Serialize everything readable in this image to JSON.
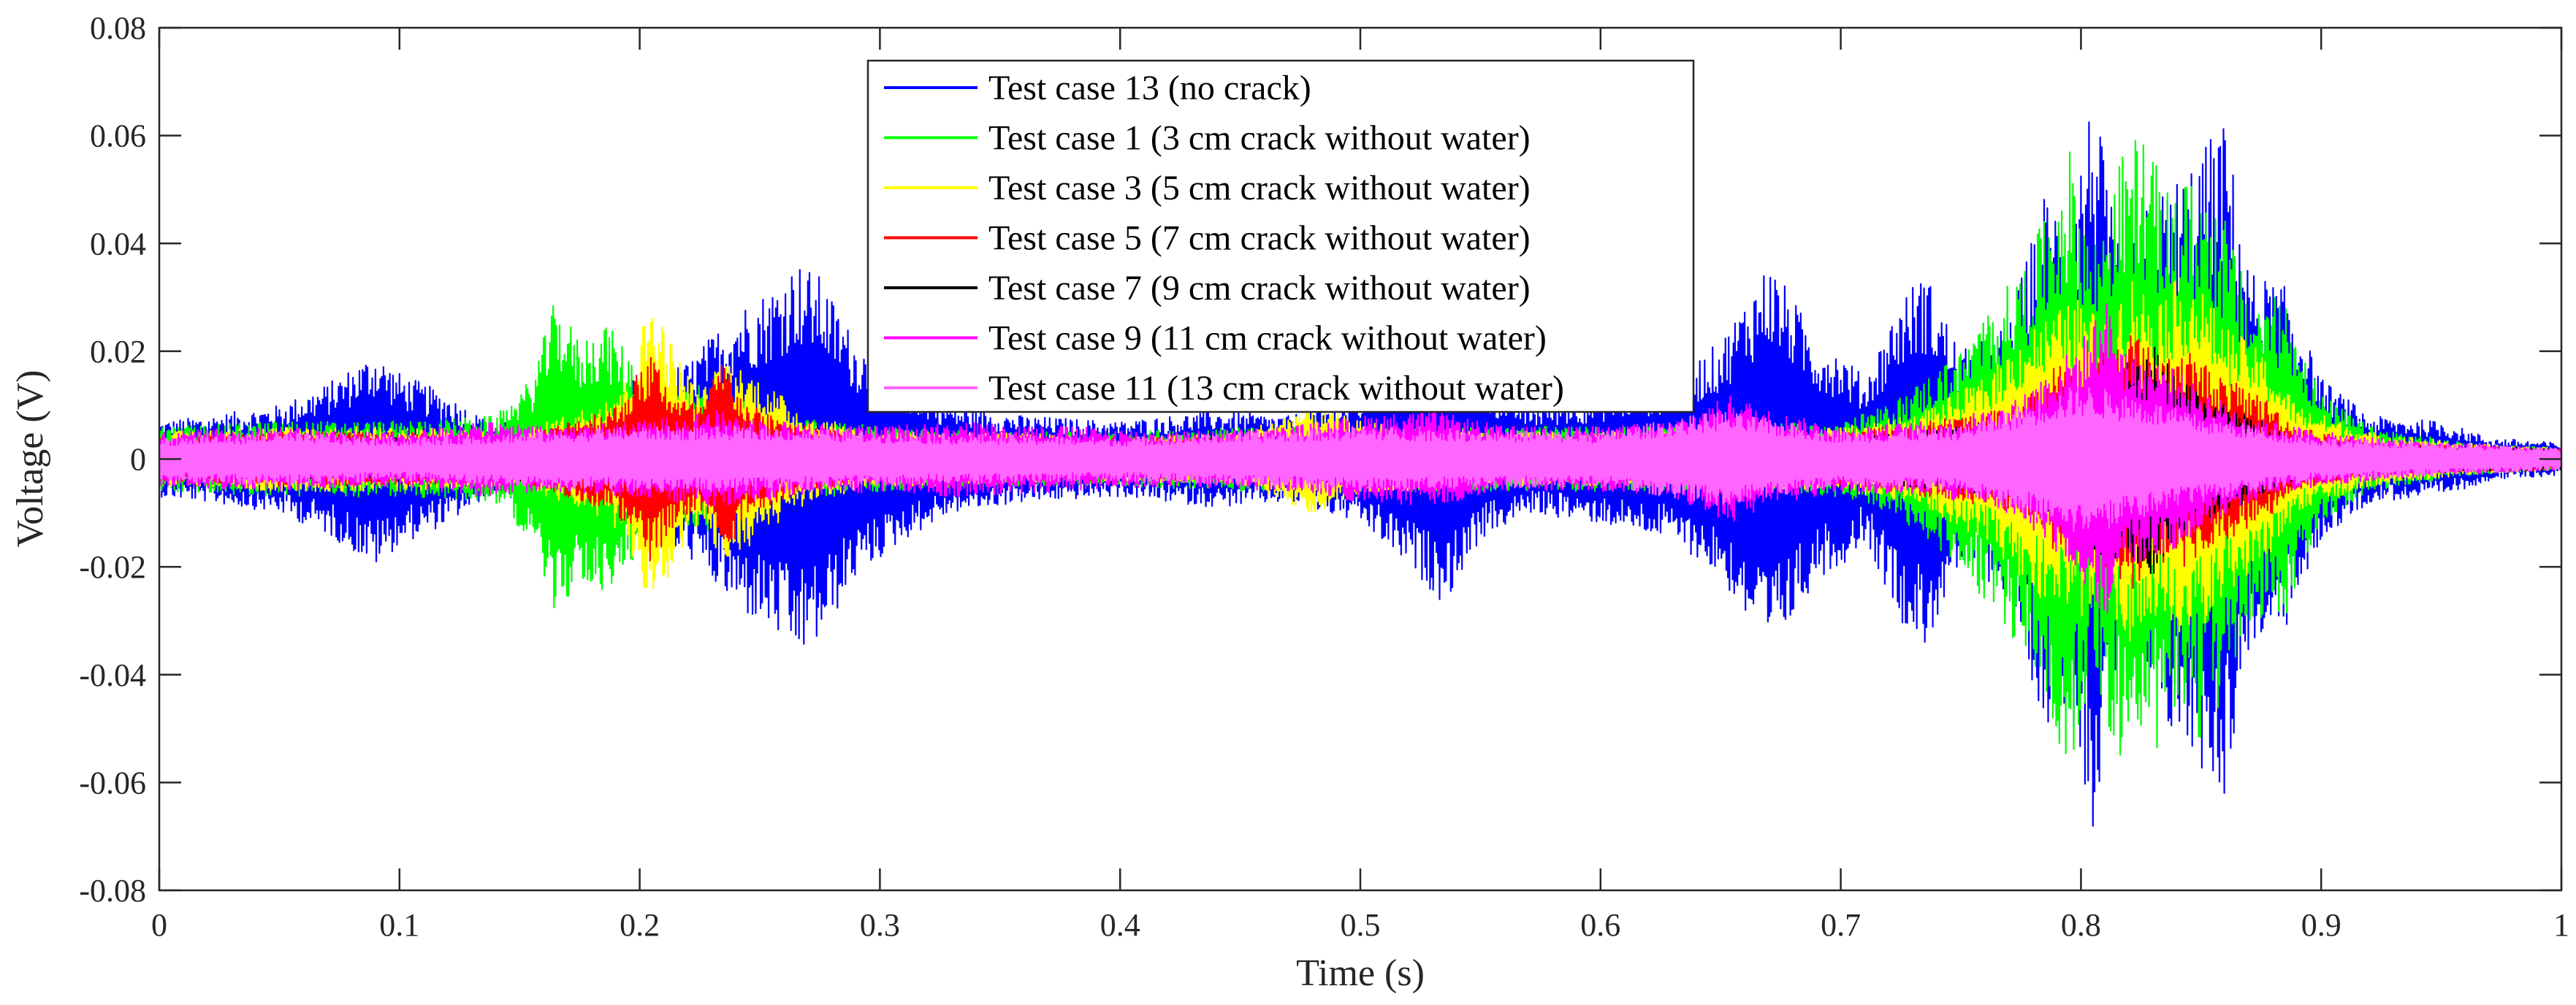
{
  "chart_data": {
    "type": "line",
    "title": "",
    "xlabel": "Time (s)",
    "ylabel": "Voltage (V)",
    "xlim": [
      0,
      1
    ],
    "ylim": [
      -0.08,
      0.08
    ],
    "grid": false,
    "legend_position": "top-center",
    "x_ticks": [
      0,
      0.1,
      0.2,
      0.3,
      0.4,
      0.5,
      0.6,
      0.7,
      0.8,
      0.9,
      1
    ],
    "x_tick_labels": [
      "0",
      "0.1",
      "0.2",
      "0.3",
      "0.4",
      "0.5",
      "0.6",
      "0.7",
      "0.8",
      "0.9",
      "1"
    ],
    "y_ticks": [
      0.08,
      0.06,
      0.04,
      0.02,
      0,
      -0.02,
      -0.04,
      -0.06,
      -0.08
    ],
    "y_tick_labels": [
      "0.08",
      "0.06",
      "0.04",
      "0.02",
      "0",
      "-0.02",
      "-0.04",
      "-0.06",
      "-0.08"
    ],
    "series": [
      {
        "name": "Test case 13 (no crack)",
        "color": "#0000ff",
        "envelope": [
          [
            0,
            0.007
          ],
          [
            0.02,
            0.008
          ],
          [
            0.05,
            0.01
          ],
          [
            0.07,
            0.014
          ],
          [
            0.09,
            0.02
          ],
          [
            0.1,
            0.016
          ],
          [
            0.12,
            0.012
          ],
          [
            0.14,
            0.006
          ],
          [
            0.16,
            0.01
          ],
          [
            0.18,
            0.012
          ],
          [
            0.2,
            0.015
          ],
          [
            0.22,
            0.018
          ],
          [
            0.24,
            0.028
          ],
          [
            0.255,
            0.032
          ],
          [
            0.265,
            0.037
          ],
          [
            0.275,
            0.034
          ],
          [
            0.29,
            0.022
          ],
          [
            0.31,
            0.015
          ],
          [
            0.33,
            0.01
          ],
          [
            0.36,
            0.008
          ],
          [
            0.4,
            0.007
          ],
          [
            0.44,
            0.009
          ],
          [
            0.47,
            0.008
          ],
          [
            0.5,
            0.012
          ],
          [
            0.52,
            0.02
          ],
          [
            0.535,
            0.027
          ],
          [
            0.55,
            0.015
          ],
          [
            0.57,
            0.01
          ],
          [
            0.6,
            0.012
          ],
          [
            0.63,
            0.015
          ],
          [
            0.65,
            0.022
          ],
          [
            0.67,
            0.037
          ],
          [
            0.68,
            0.03
          ],
          [
            0.69,
            0.022
          ],
          [
            0.7,
            0.02
          ],
          [
            0.71,
            0.015
          ],
          [
            0.725,
            0.03
          ],
          [
            0.735,
            0.035
          ],
          [
            0.75,
            0.02
          ],
          [
            0.77,
            0.025
          ],
          [
            0.785,
            0.05
          ],
          [
            0.795,
            0.045
          ],
          [
            0.805,
            0.069
          ],
          [
            0.815,
            0.04
          ],
          [
            0.83,
            0.048
          ],
          [
            0.845,
            0.055
          ],
          [
            0.86,
            0.063
          ],
          [
            0.87,
            0.035
          ],
          [
            0.885,
            0.032
          ],
          [
            0.9,
            0.015
          ],
          [
            0.92,
            0.008
          ],
          [
            0.95,
            0.007
          ],
          [
            0.97,
            0.004
          ],
          [
            1,
            0.003
          ]
        ]
      },
      {
        "name": "Test case 1 (3 cm crack without water)",
        "color": "#00ff00",
        "envelope": [
          [
            0,
            0.006
          ],
          [
            0.05,
            0.007
          ],
          [
            0.1,
            0.007
          ],
          [
            0.14,
            0.008
          ],
          [
            0.155,
            0.015
          ],
          [
            0.165,
            0.03
          ],
          [
            0.175,
            0.022
          ],
          [
            0.185,
            0.026
          ],
          [
            0.195,
            0.02
          ],
          [
            0.21,
            0.01
          ],
          [
            0.225,
            0.014
          ],
          [
            0.24,
            0.012
          ],
          [
            0.26,
            0.008
          ],
          [
            0.3,
            0.006
          ],
          [
            0.35,
            0.005
          ],
          [
            0.4,
            0.005
          ],
          [
            0.45,
            0.006
          ],
          [
            0.5,
            0.006
          ],
          [
            0.55,
            0.006
          ],
          [
            0.6,
            0.006
          ],
          [
            0.65,
            0.006
          ],
          [
            0.7,
            0.007
          ],
          [
            0.72,
            0.01
          ],
          [
            0.75,
            0.02
          ],
          [
            0.765,
            0.03
          ],
          [
            0.775,
            0.035
          ],
          [
            0.785,
            0.045
          ],
          [
            0.795,
            0.058
          ],
          [
            0.805,
            0.04
          ],
          [
            0.815,
            0.055
          ],
          [
            0.825,
            0.062
          ],
          [
            0.835,
            0.05
          ],
          [
            0.85,
            0.052
          ],
          [
            0.86,
            0.045
          ],
          [
            0.87,
            0.03
          ],
          [
            0.885,
            0.03
          ],
          [
            0.9,
            0.012
          ],
          [
            0.92,
            0.006
          ],
          [
            0.96,
            0.003
          ],
          [
            1,
            0.002
          ]
        ]
      },
      {
        "name": "Test case 3 (5 cm crack without water)",
        "color": "#ffff00",
        "envelope": [
          [
            0,
            0.005
          ],
          [
            0.05,
            0.006
          ],
          [
            0.1,
            0.006
          ],
          [
            0.15,
            0.005
          ],
          [
            0.18,
            0.01
          ],
          [
            0.195,
            0.015
          ],
          [
            0.205,
            0.031
          ],
          [
            0.215,
            0.02
          ],
          [
            0.225,
            0.012
          ],
          [
            0.235,
            0.019
          ],
          [
            0.25,
            0.015
          ],
          [
            0.27,
            0.008
          ],
          [
            0.3,
            0.005
          ],
          [
            0.35,
            0.005
          ],
          [
            0.4,
            0.004
          ],
          [
            0.45,
            0.005
          ],
          [
            0.48,
            0.01
          ],
          [
            0.5,
            0.007
          ],
          [
            0.55,
            0.005
          ],
          [
            0.6,
            0.005
          ],
          [
            0.65,
            0.005
          ],
          [
            0.7,
            0.006
          ],
          [
            0.73,
            0.008
          ],
          [
            0.76,
            0.015
          ],
          [
            0.78,
            0.025
          ],
          [
            0.8,
            0.03
          ],
          [
            0.81,
            0.025
          ],
          [
            0.82,
            0.035
          ],
          [
            0.83,
            0.03
          ],
          [
            0.845,
            0.035
          ],
          [
            0.86,
            0.025
          ],
          [
            0.875,
            0.02
          ],
          [
            0.89,
            0.01
          ],
          [
            0.92,
            0.005
          ],
          [
            0.96,
            0.003
          ],
          [
            1,
            0.002
          ]
        ]
      },
      {
        "name": "Test case 5 (7 cm crack without water)",
        "color": "#ff0000",
        "envelope": [
          [
            0,
            0.004
          ],
          [
            0.05,
            0.005
          ],
          [
            0.1,
            0.005
          ],
          [
            0.15,
            0.004
          ],
          [
            0.19,
            0.01
          ],
          [
            0.205,
            0.02
          ],
          [
            0.215,
            0.012
          ],
          [
            0.225,
            0.01
          ],
          [
            0.235,
            0.019
          ],
          [
            0.245,
            0.01
          ],
          [
            0.27,
            0.006
          ],
          [
            0.3,
            0.004
          ],
          [
            0.4,
            0.004
          ],
          [
            0.5,
            0.004
          ],
          [
            0.6,
            0.004
          ],
          [
            0.7,
            0.005
          ],
          [
            0.75,
            0.008
          ],
          [
            0.775,
            0.01
          ],
          [
            0.79,
            0.018
          ],
          [
            0.8,
            0.015
          ],
          [
            0.81,
            0.022
          ],
          [
            0.82,
            0.025
          ],
          [
            0.83,
            0.02
          ],
          [
            0.845,
            0.02
          ],
          [
            0.86,
            0.015
          ],
          [
            0.875,
            0.012
          ],
          [
            0.89,
            0.006
          ],
          [
            0.92,
            0.003
          ],
          [
            1,
            0.002
          ]
        ]
      },
      {
        "name": "Test case 7 (9 cm crack without water)",
        "color": "#000000",
        "envelope": [
          [
            0,
            0.003
          ],
          [
            0.1,
            0.004
          ],
          [
            0.2,
            0.004
          ],
          [
            0.3,
            0.003
          ],
          [
            0.4,
            0.003
          ],
          [
            0.5,
            0.003
          ],
          [
            0.6,
            0.003
          ],
          [
            0.7,
            0.004
          ],
          [
            0.75,
            0.006
          ],
          [
            0.78,
            0.008
          ],
          [
            0.795,
            0.012
          ],
          [
            0.81,
            0.02
          ],
          [
            0.82,
            0.018
          ],
          [
            0.83,
            0.022
          ],
          [
            0.84,
            0.015
          ],
          [
            0.86,
            0.01
          ],
          [
            0.88,
            0.006
          ],
          [
            0.9,
            0.003
          ],
          [
            1,
            0.002
          ]
        ]
      },
      {
        "name": "Test case 9 (11 cm crack without water)",
        "color": "#ff00ff",
        "envelope": [
          [
            0,
            0.005
          ],
          [
            0.04,
            0.006
          ],
          [
            0.1,
            0.005
          ],
          [
            0.13,
            0.007
          ],
          [
            0.16,
            0.006
          ],
          [
            0.2,
            0.007
          ],
          [
            0.23,
            0.009
          ],
          [
            0.26,
            0.007
          ],
          [
            0.3,
            0.006
          ],
          [
            0.33,
            0.007
          ],
          [
            0.38,
            0.006
          ],
          [
            0.42,
            0.005
          ],
          [
            0.47,
            0.006
          ],
          [
            0.5,
            0.008
          ],
          [
            0.53,
            0.009
          ],
          [
            0.56,
            0.006
          ],
          [
            0.6,
            0.006
          ],
          [
            0.63,
            0.007
          ],
          [
            0.655,
            0.012
          ],
          [
            0.67,
            0.009
          ],
          [
            0.7,
            0.006
          ],
          [
            0.74,
            0.007
          ],
          [
            0.77,
            0.01
          ],
          [
            0.79,
            0.018
          ],
          [
            0.8,
            0.022
          ],
          [
            0.81,
            0.03
          ],
          [
            0.82,
            0.02
          ],
          [
            0.835,
            0.018
          ],
          [
            0.85,
            0.013
          ],
          [
            0.87,
            0.008
          ],
          [
            0.9,
            0.005
          ],
          [
            0.95,
            0.003
          ],
          [
            1,
            0.002
          ]
        ]
      },
      {
        "name": "Test case 11 (13 cm crack without water)",
        "color": "#ff66ff",
        "envelope": [
          [
            0,
            0.004
          ],
          [
            0.05,
            0.005
          ],
          [
            0.1,
            0.004
          ],
          [
            0.15,
            0.005
          ],
          [
            0.2,
            0.006
          ],
          [
            0.25,
            0.006
          ],
          [
            0.3,
            0.005
          ],
          [
            0.4,
            0.004
          ],
          [
            0.5,
            0.006
          ],
          [
            0.6,
            0.005
          ],
          [
            0.65,
            0.009
          ],
          [
            0.7,
            0.005
          ],
          [
            0.75,
            0.006
          ],
          [
            0.8,
            0.014
          ],
          [
            0.82,
            0.012
          ],
          [
            0.85,
            0.008
          ],
          [
            0.9,
            0.004
          ],
          [
            1,
            0.002
          ]
        ]
      }
    ]
  }
}
